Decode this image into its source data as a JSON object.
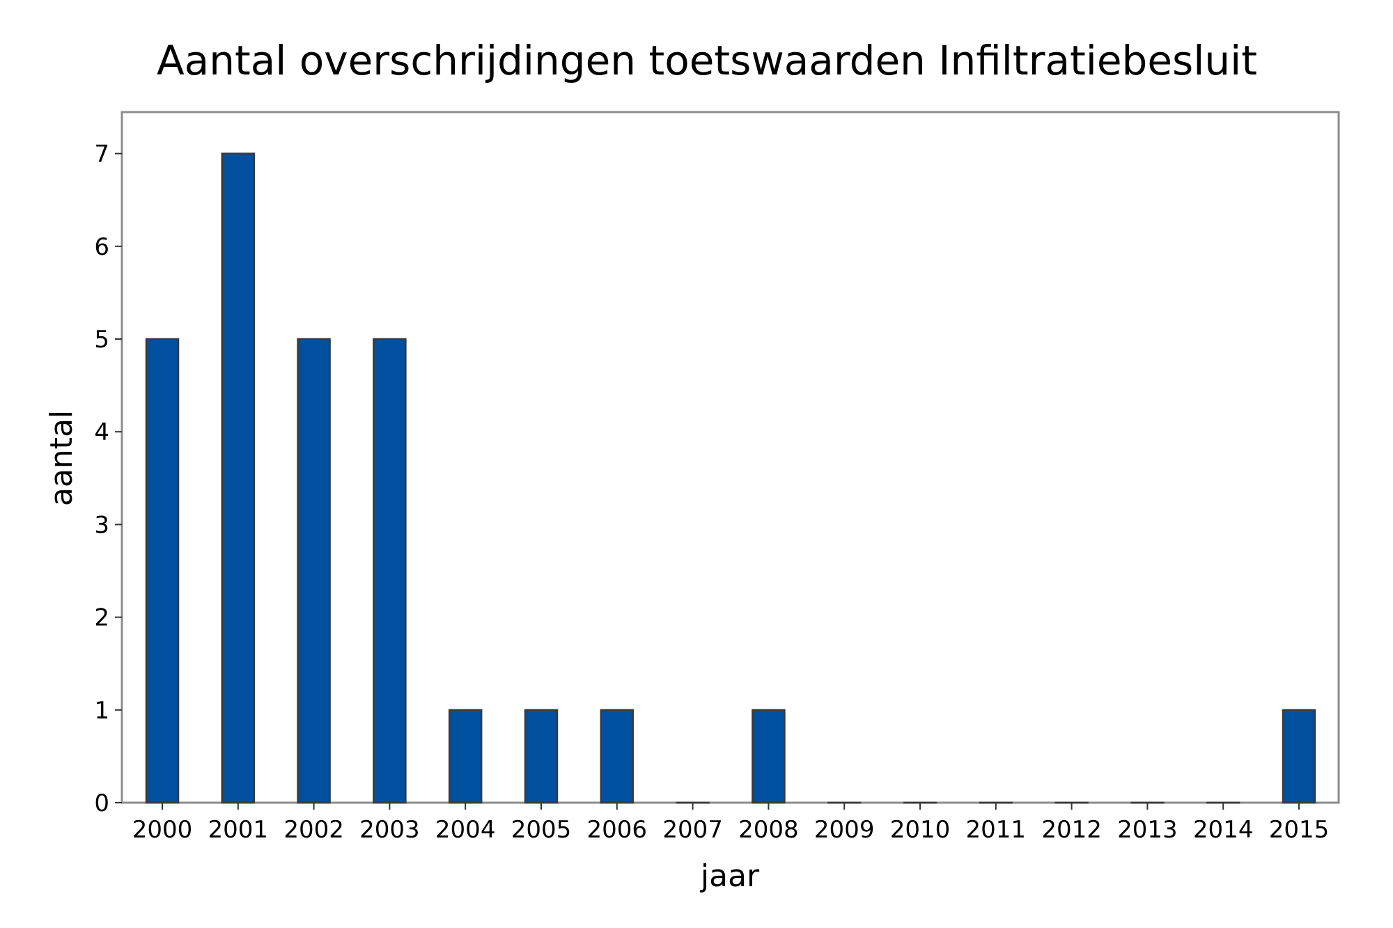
{
  "chart_data": {
    "type": "bar",
    "title": "Aantal overschrijdingen toetswaarden Infiltratiebesluit",
    "xlabel": "jaar",
    "ylabel": "aantal",
    "categories": [
      "2000",
      "2001",
      "2002",
      "2003",
      "2004",
      "2005",
      "2006",
      "2007",
      "2008",
      "2009",
      "2010",
      "2011",
      "2012",
      "2013",
      "2014",
      "2015"
    ],
    "values": [
      5,
      7,
      5,
      5,
      1,
      1,
      1,
      0,
      1,
      0,
      0,
      0,
      0,
      0,
      0,
      1
    ],
    "yticks": [
      "0",
      "1",
      "2",
      "3",
      "4",
      "5",
      "6",
      "7"
    ],
    "ylim": [
      0,
      7.43
    ],
    "grid": false,
    "legend": "none",
    "bar_color": "#0050a0",
    "frame_color": "#8c8c8c"
  }
}
